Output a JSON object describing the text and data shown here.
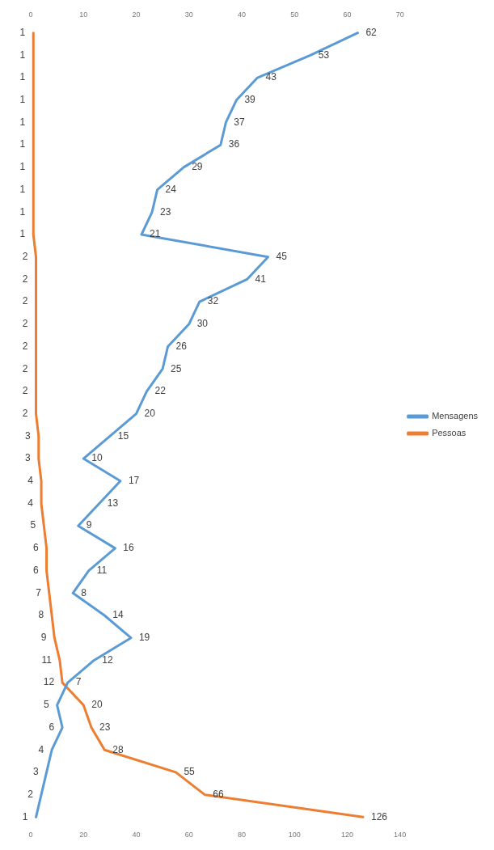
{
  "chart_data": {
    "type": "line",
    "orientation": "horizontal",
    "categories": [
      null,
      null,
      null,
      null,
      null,
      null,
      null,
      null,
      null,
      null,
      null,
      null,
      null,
      null,
      null,
      null,
      null,
      null,
      null,
      null,
      null,
      null,
      null,
      null,
      null,
      null,
      null,
      null,
      null,
      null,
      null,
      null,
      null,
      null,
      null,
      null
    ],
    "series": [
      {
        "name": "Mensagens",
        "color": "#5b9bd5",
        "axis": "x2",
        "values": [
          62,
          53,
          43,
          39,
          37,
          36,
          29,
          24,
          23,
          21,
          45,
          41,
          32,
          30,
          26,
          25,
          22,
          20,
          15,
          10,
          17,
          13,
          9,
          16,
          11,
          8,
          14,
          19,
          12,
          7,
          5,
          6,
          4,
          3,
          2,
          1
        ]
      },
      {
        "name": "Pessoas",
        "color": "#ed7d31",
        "values": [
          1,
          1,
          1,
          1,
          1,
          1,
          1,
          1,
          1,
          1,
          2,
          2,
          2,
          2,
          2,
          2,
          2,
          2,
          3,
          3,
          4,
          4,
          5,
          6,
          6,
          7,
          8,
          9,
          11,
          12,
          20,
          23,
          28,
          55,
          66,
          126
        ]
      }
    ],
    "x2lim": [
      0,
      70
    ],
    "x2ticks": [
      0,
      10,
      20,
      30,
      40,
      50,
      60,
      70
    ],
    "xlim": [
      0,
      140
    ],
    "xticks": [
      0,
      20,
      40,
      60,
      80,
      100,
      120,
      140
    ],
    "legend": "right",
    "data_labels": true,
    "line_style": "solid"
  }
}
